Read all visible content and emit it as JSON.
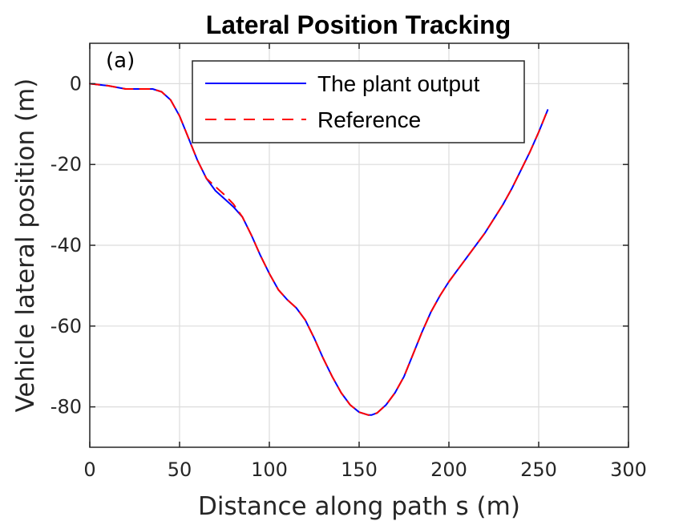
{
  "chart_data": {
    "type": "line",
    "title": "Lateral Position Tracking",
    "annotation": "(a)",
    "xlabel": "Distance along path s (m)",
    "ylabel": "Vehicle lateral position (m)",
    "xlim": [
      0,
      300
    ],
    "ylim": [
      -90,
      10
    ],
    "xticks": [
      0,
      50,
      100,
      150,
      200,
      250,
      300
    ],
    "yticks": [
      -80,
      -60,
      -40,
      -20,
      0
    ],
    "grid": true,
    "legend_position": "top-center",
    "series": [
      {
        "name": "The plant output",
        "color": "#0000ff",
        "style": "solid",
        "x": [
          0,
          10,
          20,
          30,
          35,
          40,
          45,
          50,
          55,
          60,
          65,
          70,
          75,
          80,
          85,
          90,
          95,
          100,
          105,
          110,
          115,
          120,
          125,
          130,
          135,
          140,
          145,
          150,
          155,
          157,
          160,
          165,
          170,
          175,
          180,
          185,
          190,
          195,
          200,
          205,
          210,
          215,
          220,
          225,
          230,
          235,
          240,
          245,
          250,
          255
        ],
        "y": [
          0,
          -0.5,
          -1.3,
          -1.3,
          -1.3,
          -2.0,
          -4.0,
          -8.0,
          -13.5,
          -19.0,
          -23.5,
          -26.5,
          -28.5,
          -30.5,
          -33.0,
          -37.5,
          -42.5,
          -47.0,
          -51.0,
          -53.5,
          -55.5,
          -58.5,
          -63.0,
          -68.0,
          -72.5,
          -76.5,
          -79.5,
          -81.3,
          -82.0,
          -82.0,
          -81.5,
          -79.5,
          -76.5,
          -72.5,
          -67.0,
          -61.5,
          -56.5,
          -52.5,
          -49.0,
          -46.0,
          -43.0,
          -40.0,
          -37.0,
          -33.5,
          -30.0,
          -26.0,
          -21.5,
          -17.0,
          -12.0,
          -6.5
        ]
      },
      {
        "name": "Reference",
        "color": "#ff0000",
        "style": "dashed",
        "x": [
          0,
          10,
          20,
          30,
          35,
          40,
          45,
          50,
          55,
          60,
          65,
          70,
          75,
          80,
          85,
          90,
          95,
          100,
          105,
          110,
          115,
          120,
          125,
          130,
          135,
          140,
          145,
          150,
          155,
          157,
          160,
          165,
          170,
          175,
          180,
          185,
          190,
          195,
          200,
          205,
          210,
          215,
          220,
          225,
          230,
          235,
          240,
          245,
          250,
          255
        ],
        "y": [
          0,
          -0.5,
          -1.3,
          -1.3,
          -1.3,
          -2.0,
          -4.0,
          -8.0,
          -13.5,
          -19.0,
          -23.5,
          -25.5,
          -27.5,
          -29.8,
          -33.0,
          -37.5,
          -42.5,
          -47.0,
          -51.0,
          -53.5,
          -55.5,
          -58.5,
          -63.0,
          -68.0,
          -72.5,
          -76.5,
          -79.5,
          -81.3,
          -82.0,
          -82.0,
          -81.5,
          -79.5,
          -76.5,
          -72.5,
          -67.0,
          -61.5,
          -56.5,
          -52.5,
          -49.0,
          -46.0,
          -43.0,
          -40.0,
          -37.0,
          -33.5,
          -30.0,
          -26.0,
          -21.5,
          -17.0,
          -12.0,
          -6.5
        ]
      }
    ]
  }
}
